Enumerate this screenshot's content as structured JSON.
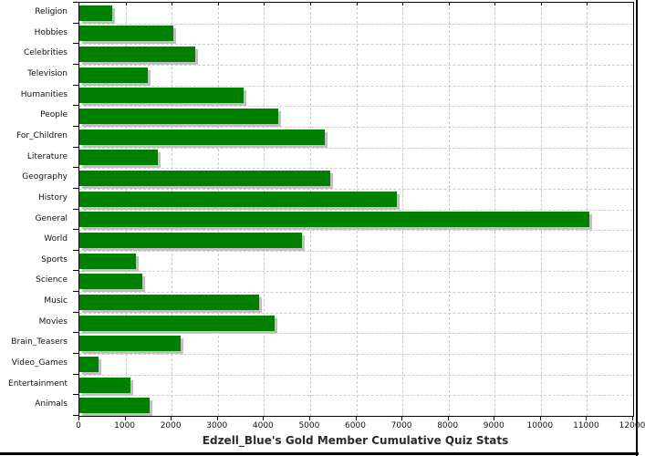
{
  "chart_data": {
    "type": "bar",
    "orientation": "horizontal",
    "title": "Edzell_Blue's Gold Member Cumulative Quiz Stats",
    "title_position": "bottom",
    "categories": [
      "Religion",
      "Hobbies",
      "Celebrities",
      "Television",
      "Humanities",
      "People",
      "For_Children",
      "Literature",
      "Geography",
      "History",
      "General",
      "World",
      "Sports",
      "Science",
      "Music",
      "Movies",
      "Brain_Teasers",
      "Video_Games",
      "Entertainment",
      "Animals"
    ],
    "values": [
      720,
      2030,
      2520,
      1490,
      3550,
      4300,
      5320,
      1700,
      5430,
      6870,
      11050,
      4820,
      1230,
      1360,
      3890,
      4240,
      2190,
      420,
      1100,
      1530
    ],
    "xlim": [
      0,
      12000
    ],
    "x_ticks": [
      0,
      1000,
      2000,
      3000,
      4000,
      5000,
      6000,
      7000,
      8000,
      9000,
      10000,
      11000,
      12000
    ],
    "x_tick_labels": [
      "0",
      "1000",
      "2000",
      "3000",
      "4000",
      "5000",
      "6000",
      "7000",
      "8000",
      "9000",
      "10000",
      "11000",
      "12000"
    ],
    "xlabel": "",
    "ylabel": "",
    "legend": "none",
    "grid": "dashed",
    "grid_color": "#cccccc",
    "bar_color": "#008000",
    "bar_shadow_color": "#c0c0c0",
    "axis_color": "#000000",
    "frame_color": "#000000"
  }
}
